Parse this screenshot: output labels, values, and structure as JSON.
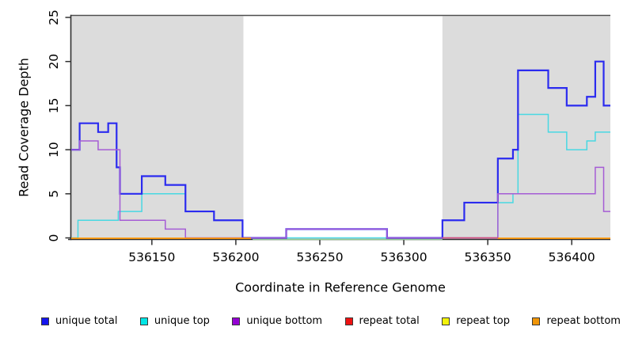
{
  "chart_data": {
    "type": "line",
    "subtype": "step-coverage",
    "title": "",
    "xlabel": "Coordinate in Reference Genome",
    "ylabel": "Read Coverage Depth",
    "xlim": [
      536102,
      536423
    ],
    "ylim": [
      0,
      25
    ],
    "x_ticks": [
      536150,
      536200,
      536250,
      536300,
      536350,
      536400
    ],
    "y_ticks": [
      0,
      5,
      10,
      15,
      20,
      25
    ],
    "grid": false,
    "legend_position": "bottom",
    "colors": {
      "shade": "#dcdcdc",
      "frame": "#4d4d4d",
      "spine": "#303030",
      "tick": "#303030",
      "text": "#000000"
    },
    "shaded_regions": [
      {
        "x0": 536102,
        "x1": 536204.5
      },
      {
        "x0": 536323,
        "x1": 536423
      }
    ],
    "series": [
      {
        "name": "unique top",
        "color": "#48d8e2",
        "width": 1.5,
        "steps": [
          [
            536102,
            0
          ],
          [
            536106,
            2
          ],
          [
            536130,
            3
          ],
          [
            536144,
            5
          ],
          [
            536170,
            3
          ],
          [
            536187,
            2
          ],
          [
            536204,
            0
          ],
          [
            536356,
            4
          ],
          [
            536365,
            5
          ],
          [
            536368,
            14
          ],
          [
            536386,
            12
          ],
          [
            536397,
            10
          ],
          [
            536409,
            11
          ],
          [
            536414,
            12
          ]
        ]
      },
      {
        "name": "unique total",
        "color": "#2b2bef",
        "width": 2.2,
        "steps": [
          [
            536102,
            10
          ],
          [
            536107,
            13
          ],
          [
            536118,
            12
          ],
          [
            536124,
            13
          ],
          [
            536129,
            8
          ],
          [
            536131,
            5
          ],
          [
            536144,
            7
          ],
          [
            536158,
            6
          ],
          [
            536170,
            3
          ],
          [
            536187,
            2
          ],
          [
            536204,
            0
          ],
          [
            536230,
            1
          ],
          [
            536290,
            0
          ],
          [
            536323,
            2
          ],
          [
            536336,
            4
          ],
          [
            536356,
            9
          ],
          [
            536365,
            10
          ],
          [
            536368,
            19
          ],
          [
            536386,
            17
          ],
          [
            536397,
            15
          ],
          [
            536409,
            16
          ],
          [
            536414,
            20
          ],
          [
            536419,
            15
          ]
        ]
      },
      {
        "name": "unique bottom",
        "color": "#a55cd5",
        "width": 1.5,
        "steps": [
          [
            536102,
            10
          ],
          [
            536107,
            11
          ],
          [
            536118,
            10
          ],
          [
            536131,
            2
          ],
          [
            536158,
            1
          ],
          [
            536170,
            0
          ],
          [
            536230,
            1
          ],
          [
            536290,
            0
          ],
          [
            536356,
            5
          ],
          [
            536414,
            8
          ],
          [
            536419,
            3
          ]
        ]
      }
    ],
    "baseline_overlays": [
      {
        "name": "gap-baseline",
        "layer": "under",
        "color": "#8fce8f",
        "width": 1.3,
        "x0": 536210,
        "x1": 536323,
        "y": 0,
        "dy": 2
      },
      {
        "name": "repeat total",
        "layer": "over",
        "color": "#dc4b78",
        "width": 1.6,
        "x0": 536323,
        "x1": 536356,
        "y": 0,
        "dy": 0
      },
      {
        "name": "repeat bottom",
        "layer": "over",
        "color": "#ff9500",
        "width": 1.8,
        "x0": 536102,
        "x1": 536209,
        "y": 0,
        "dy": 0.5
      },
      {
        "name": "repeat bottom",
        "layer": "over",
        "color": "#ff9500",
        "width": 1.8,
        "x0": 536356,
        "x1": 536423,
        "y": 0,
        "dy": 0.5
      }
    ],
    "legend": [
      {
        "label": "unique total",
        "color": "#1414ee"
      },
      {
        "label": "unique top",
        "color": "#00e5e5"
      },
      {
        "label": "unique bottom",
        "color": "#9400d3"
      },
      {
        "label": "repeat total",
        "color": "#ee1111"
      },
      {
        "label": "repeat top",
        "color": "#f2f20a"
      },
      {
        "label": "repeat bottom",
        "color": "#f09508"
      }
    ]
  }
}
